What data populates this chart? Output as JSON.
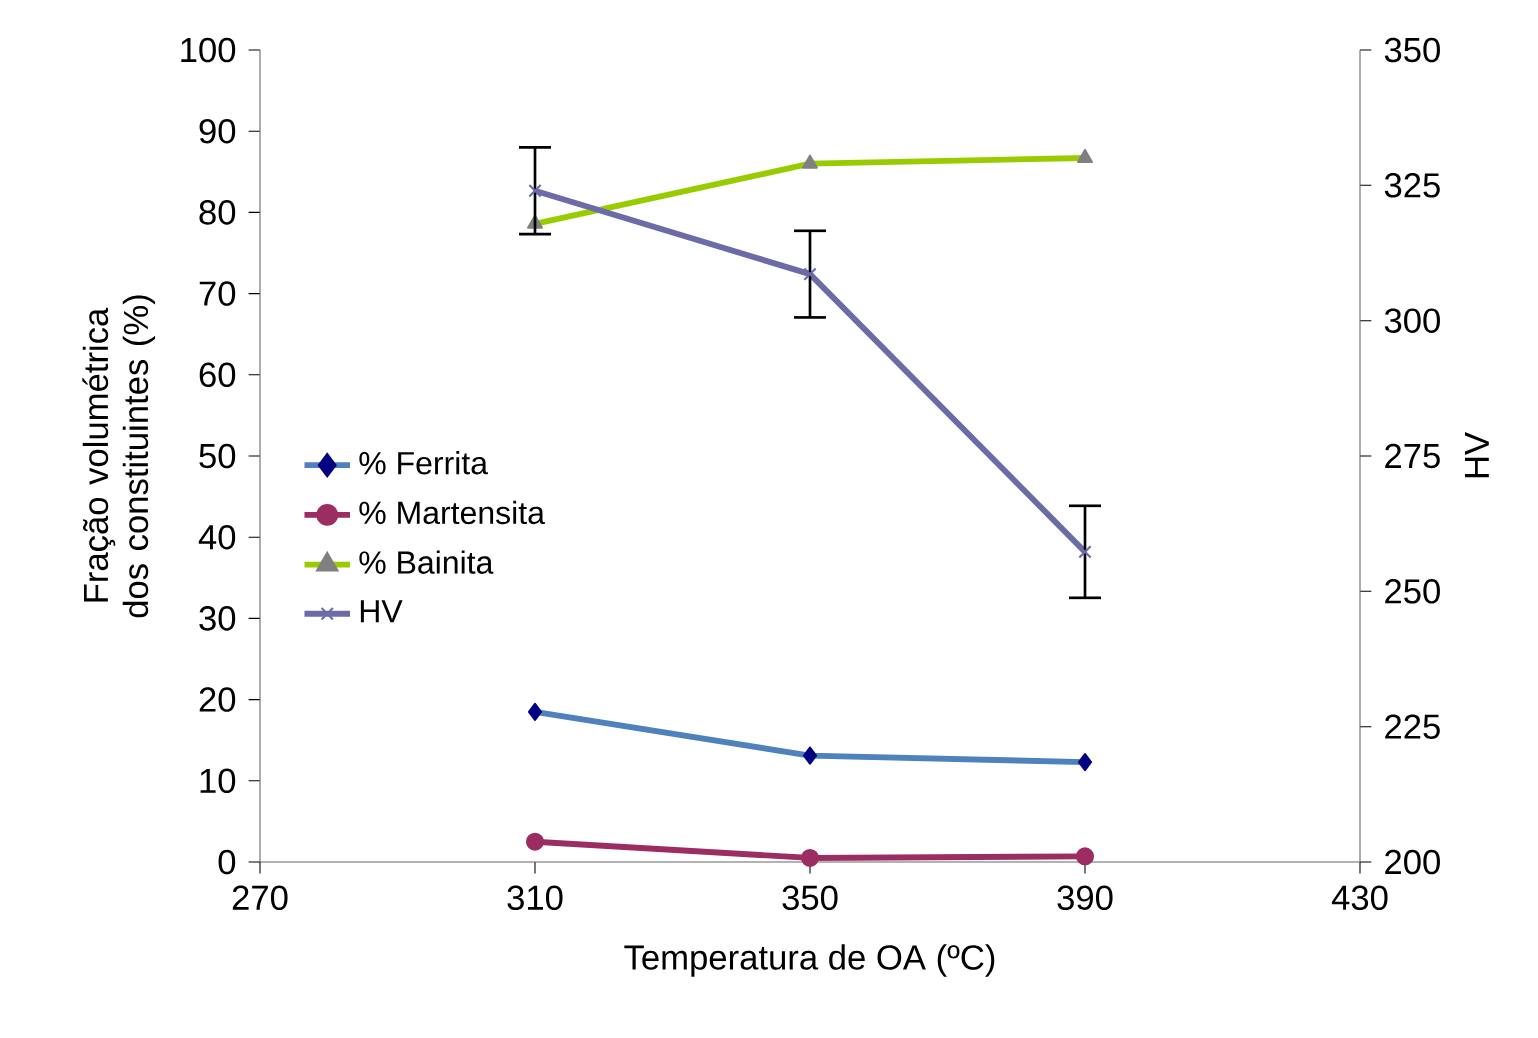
{
  "chart_data": {
    "type": "line",
    "xlabel": "Temperatura de  OA (ºC)",
    "ylabel": "Fração volumétrica dos constituintes (%)",
    "y2label": "HV",
    "x": [
      310,
      350,
      390
    ],
    "series": [
      {
        "name": "% Ferrita",
        "color": "#4f81bd",
        "marker": "diamond",
        "values": [
          18.5,
          13.1,
          12.3
        ]
      },
      {
        "name": "% Martensita",
        "color": "#9b2d62",
        "marker": "circle",
        "values": [
          2.5,
          0.5,
          0.7
        ]
      },
      {
        "name": "% Bainita",
        "color": "#99cc00",
        "marker": "triangle",
        "values": [
          78.6,
          86.0,
          86.7
        ]
      },
      {
        "name": "HV",
        "color": "#6b6ba8",
        "marker": "cross",
        "axis": "y2",
        "values": [
          324,
          308.6,
          257.3
        ],
        "errors": [
          8,
          8,
          8.5
        ]
      }
    ],
    "xlim": [
      270,
      430
    ],
    "xticks": [
      270,
      310,
      350,
      390,
      430
    ],
    "ylim": [
      0,
      100
    ],
    "yticks": [
      0,
      10,
      20,
      30,
      40,
      50,
      60,
      70,
      80,
      90,
      100
    ],
    "y2lim": [
      200,
      350
    ],
    "y2ticks": [
      200,
      225,
      250,
      275,
      300,
      325,
      350
    ],
    "grid": false,
    "legend": "left"
  }
}
